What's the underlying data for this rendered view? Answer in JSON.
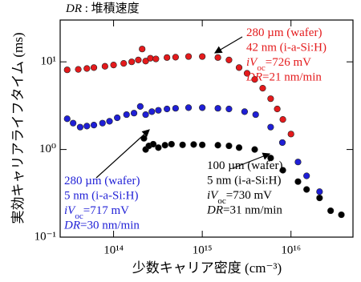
{
  "chart_data": {
    "type": "scatter",
    "xlabel": "少数キャリア密度 (cm⁻³)",
    "ylabel": "実効キャリアライフタイム (ms)",
    "xscale": "log",
    "yscale": "log",
    "xlim": [
      25000000000000.0,
      5e+16
    ],
    "ylim": [
      0.1,
      30
    ],
    "xticks": [
      {
        "value": 100000000000000.0,
        "label": "10¹⁴"
      },
      {
        "value": 1000000000000000.0,
        "label": "10¹⁵"
      },
      {
        "value": 1e+16,
        "label": "10¹⁶"
      }
    ],
    "yticks": [
      {
        "value": 0.1,
        "label": "10⁻¹"
      },
      {
        "value": 1,
        "label": "10⁰"
      },
      {
        "value": 10,
        "label": "10¹"
      }
    ],
    "note": [
      {
        "text": "DR",
        "style": "italic"
      },
      {
        "text": " : 堆積速度"
      }
    ],
    "series": [
      {
        "name": "280 µm (wafer) 42 nm (i-a-Si:H)",
        "color": "#e41a1c",
        "x": [
          30000000000000.0,
          40000000000000.0,
          50000000000000.0,
          60000000000000.0,
          80000000000000.0,
          100000000000000.0,
          130000000000000.0,
          160000000000000.0,
          190000000000000.0,
          210000000000000.0,
          230000000000000.0,
          260000000000000.0,
          300000000000000.0,
          400000000000000.0,
          500000000000000.0,
          700000000000000.0,
          1000000000000000.0,
          1500000000000000.0,
          2000000000000000.0,
          2600000000000000.0,
          3200000000000000.0,
          3900000000000000.0,
          4800000000000000.0,
          5900000000000000.0,
          7000000000000000.0,
          8100000000000000.0,
          1e+16
        ],
        "values": [
          8.1,
          8.2,
          8.4,
          8.6,
          8.9,
          9.2,
          9.6,
          10,
          10.5,
          14,
          10.2,
          11,
          10.8,
          11.2,
          11.3,
          11.5,
          11.5,
          11.2,
          10.5,
          8.6,
          7.4,
          6.3,
          5,
          3.8,
          2.9,
          2.2,
          1.5
        ]
      },
      {
        "name": "280 µm (wafer) 5 nm (i-a-Si:H)",
        "color": "#1f1fd6",
        "x": [
          30000000000000.0,
          35000000000000.0,
          42000000000000.0,
          50000000000000.0,
          60000000000000.0,
          75000000000000.0,
          90000000000000.0,
          110000000000000.0,
          140000000000000.0,
          170000000000000.0,
          200000000000000.0,
          230000000000000.0,
          270000000000000.0,
          320000000000000.0,
          400000000000000.0,
          500000000000000.0,
          700000000000000.0,
          1000000000000000.0,
          1500000000000000.0,
          2000000000000000.0,
          3000000000000000.0,
          4000000000000000.0,
          5900000000000000.0,
          8000000000000000.0,
          1.2e+16,
          1.5e+16,
          2.1e+16
        ],
        "values": [
          2.24,
          2.0,
          1.8,
          1.85,
          1.9,
          2.0,
          2.1,
          2.3,
          2.5,
          2.6,
          3.1,
          2.5,
          2.7,
          2.8,
          2.9,
          2.95,
          3.0,
          3.0,
          2.95,
          2.9,
          2.7,
          2.5,
          1.8,
          1.2,
          0.72,
          0.5,
          0.33
        ]
      },
      {
        "name": "100 µm (wafer) 5 nm (i-a-Si:H)",
        "color": "#000000",
        "x": [
          220000000000000.0,
          230000000000000.0,
          250000000000000.0,
          280000000000000.0,
          320000000000000.0,
          380000000000000.0,
          450000000000000.0,
          600000000000000.0,
          800000000000000.0,
          1000000000000000.0,
          1500000000000000.0,
          2000000000000000.0,
          2600000000000000.0,
          3900000000000000.0,
          5900000000000000.0,
          8100000000000000.0,
          1.2e+16,
          1.5e+16,
          2.1e+16,
          2.8e+16,
          3.7e+16
        ],
        "values": [
          1.34,
          1.0,
          1.1,
          1.15,
          1.05,
          1.12,
          1.15,
          1.13,
          1.14,
          1.13,
          1.12,
          1.1,
          1.05,
          1.0,
          0.8,
          0.58,
          0.43,
          0.35,
          0.28,
          0.2,
          0.18
        ]
      }
    ],
    "annotations": [
      {
        "color": "#e41a1c",
        "lines": [
          [
            {
              "text": "280 µm (wafer)"
            }
          ],
          [
            {
              "text": "42 nm (i-a-Si:H)"
            }
          ],
          [
            {
              "text": "iV",
              "style": "italic"
            },
            {
              "text": "oc",
              "style": "sub"
            },
            {
              "text": "=726 mV"
            }
          ],
          [
            {
              "text": "DR",
              "style": "italic"
            },
            {
              "text": "=21 nm/min"
            }
          ]
        ]
      },
      {
        "color": "#1f1fd6",
        "lines": [
          [
            {
              "text": "280 µm (wafer)"
            }
          ],
          [
            {
              "text": "5 nm (i-a-Si:H)"
            }
          ],
          [
            {
              "text": "iV",
              "style": "italic"
            },
            {
              "text": "oc",
              "style": "sub"
            },
            {
              "text": "=717 mV"
            }
          ],
          [
            {
              "text": "DR",
              "style": "italic"
            },
            {
              "text": "=30 nm/min"
            }
          ]
        ]
      },
      {
        "color": "#000000",
        "lines": [
          [
            {
              "text": "100 µm (wafer)"
            }
          ],
          [
            {
              "text": "5 nm (i-a-Si:H)"
            }
          ],
          [
            {
              "text": "iV",
              "style": "italic"
            },
            {
              "text": "oc",
              "style": "sub"
            },
            {
              "text": "=730 mV"
            }
          ],
          [
            {
              "text": "DR",
              "style": "italic"
            },
            {
              "text": "=31 nm/min"
            }
          ]
        ]
      }
    ]
  }
}
